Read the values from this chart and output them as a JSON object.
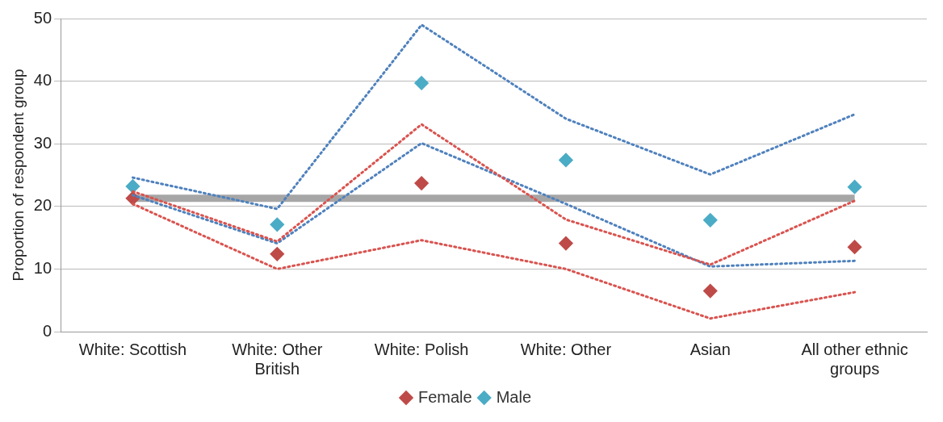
{
  "chart_data": {
    "type": "line",
    "ylabel": "Proportion of respondent group",
    "categories": [
      "White: Scottish",
      "White: Other British",
      "White: Polish",
      "White: Other",
      "Asian",
      "All other ethnic groups"
    ],
    "ylim": [
      0,
      50
    ],
    "yticks": [
      0,
      10,
      20,
      30,
      40,
      50
    ],
    "grid": "y",
    "legend": "bottom",
    "ref_lines": [
      {
        "axis": "y",
        "value": 21.3,
        "color": "#a6a6a6"
      }
    ],
    "series": [
      {
        "color": "#d9534f",
        "line_style": "dotted",
        "marker": "none",
        "values": [
          22.4,
          14.4,
          33.1,
          17.9,
          10.7,
          20.9
        ]
      },
      {
        "color": "#d9534f",
        "line_style": "dotted",
        "marker": "none",
        "values": [
          20.4,
          10,
          14.6,
          10,
          2.1,
          6.3
        ]
      },
      {
        "color": "#4f81bd",
        "line_style": "dotted",
        "marker": "none",
        "values": [
          24.6,
          19.6,
          49,
          34,
          25.1,
          34.7
        ]
      },
      {
        "color": "#4f81bd",
        "line_style": "dotted",
        "marker": "none",
        "values": [
          21.8,
          14.1,
          30.1,
          20.4,
          10.4,
          11.3
        ]
      },
      {
        "type": "scatter",
        "name": "Female",
        "color": "#be4b48",
        "marker": "diamond",
        "values": [
          21.3,
          12.4,
          23.7,
          14.1,
          6.5,
          13.5
        ]
      },
      {
        "type": "scatter",
        "name": "Male",
        "color": "#4bacc6",
        "marker": "diamond",
        "values": [
          23.2,
          17.1,
          39.7,
          27.4,
          17.8,
          23.1
        ]
      }
    ]
  }
}
